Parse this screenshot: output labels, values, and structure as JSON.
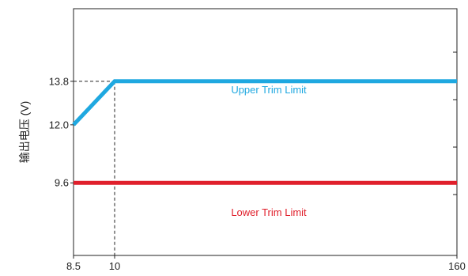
{
  "chart_data": {
    "type": "line",
    "title": "",
    "xlabel": "",
    "ylabel": "输出电压 (V)",
    "xlim": [
      8.5,
      160
    ],
    "x_break": {
      "from": 10,
      "to": 160,
      "note": "x axis is not to scale beyond 10"
    },
    "ylim": [
      6.6,
      16.8
    ],
    "x_ticks": [
      {
        "value": 8.5,
        "label": "8.5"
      },
      {
        "value": 10,
        "label": "10"
      },
      {
        "value": 160,
        "label": "160"
      }
    ],
    "y_ticks": [
      {
        "value": 9.6,
        "label": "9.6"
      },
      {
        "value": 12.0,
        "label": "12.0"
      },
      {
        "value": 13.8,
        "label": "13.8"
      }
    ],
    "series": [
      {
        "name": "Upper Trim Limit",
        "color": "#1fa8e0",
        "points": [
          {
            "x": 8.5,
            "y": 12.0
          },
          {
            "x": 10,
            "y": 13.8
          },
          {
            "x": 160,
            "y": 13.8
          }
        ]
      },
      {
        "name": "Lower Trim Limit",
        "color": "#e0202c",
        "points": [
          {
            "x": 8.5,
            "y": 9.6
          },
          {
            "x": 160,
            "y": 9.6
          }
        ]
      }
    ],
    "reference_lines": [
      {
        "type": "dashed",
        "from": {
          "x": 8.5,
          "y": 13.8
        },
        "to": {
          "x": 10,
          "y": 13.8
        }
      },
      {
        "type": "dashed",
        "from": {
          "x": 10,
          "y": 13.8
        },
        "to": {
          "x": 10,
          "y": 6.6
        }
      }
    ],
    "grid": false,
    "legend": "none"
  }
}
